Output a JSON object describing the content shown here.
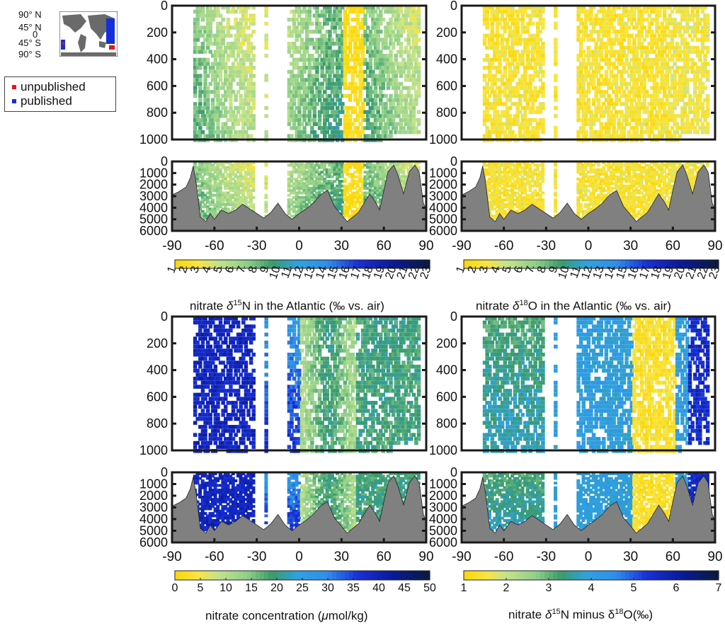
{
  "colors": {
    "land": "#808080",
    "axis": "#1a1a1a",
    "unpublished": "#e8141b",
    "published": "#1430d8"
  },
  "minimap": {
    "lat_labels": [
      "90° N",
      "45° N",
      "0",
      "45° S",
      "90° S"
    ]
  },
  "legend": {
    "items": [
      {
        "label": "unpublished",
        "color": "#e8141b"
      },
      {
        "label": "published",
        "color": "#1430d8"
      }
    ]
  },
  "chart_data": [
    {
      "type": "heatmap",
      "panel": "top-left",
      "x_tick_labels": [
        "-90",
        "-60",
        "-30",
        "0",
        "30",
        "60",
        "90"
      ],
      "xlim": [
        -90,
        90
      ],
      "upper_depth_ticks": [
        "0",
        "200",
        "400",
        "600",
        "800",
        "1000"
      ],
      "upper_ylim": [
        0,
        1000
      ],
      "lower_depth_ticks": [
        "0",
        "1000",
        "2000",
        "3000",
        "4000",
        "5000",
        "6000"
      ],
      "lower_ylim": [
        0,
        6000
      ],
      "colorbar": {
        "label_prefix": "nitrate ",
        "label_math": "δ",
        "label_sup": "15",
        "label_rest": "N in the Atlantic (‰ vs. air)",
        "ticks": [
          "1",
          "2",
          "3",
          "4",
          "5",
          "6",
          "7",
          "8",
          "9",
          "10",
          "11",
          "12",
          "13",
          "14",
          "15",
          "16",
          "17",
          "18",
          "19",
          "20",
          "21",
          "22",
          "23"
        ],
        "range": [
          1,
          23
        ]
      }
    },
    {
      "type": "heatmap",
      "panel": "top-right",
      "x_tick_labels": [
        "-90",
        "-60",
        "-30",
        "0",
        "30",
        "60",
        "90"
      ],
      "xlim": [
        -90,
        90
      ],
      "upper_depth_ticks": [
        "0",
        "200",
        "400",
        "600",
        "800",
        "1000"
      ],
      "upper_ylim": [
        0,
        1000
      ],
      "lower_depth_ticks": [
        "0",
        "1000",
        "2000",
        "3000",
        "4000",
        "5000",
        "6000"
      ],
      "lower_ylim": [
        0,
        6000
      ],
      "colorbar": {
        "label_prefix": "nitrate ",
        "label_math": "δ",
        "label_sup": "18",
        "label_rest": "O in the Atlantic (‰ vs. air)",
        "ticks": [
          "1",
          "2",
          "3",
          "4",
          "5",
          "6",
          "7",
          "8",
          "9",
          "10",
          "11",
          "12",
          "13",
          "14",
          "15",
          "16",
          "17",
          "18",
          "19",
          "20",
          "21",
          "22",
          "23"
        ],
        "range": [
          1,
          23
        ]
      }
    },
    {
      "type": "heatmap",
      "panel": "bottom-left",
      "x_tick_labels": [
        "-90",
        "-60",
        "-30",
        "0",
        "30",
        "60",
        "90"
      ],
      "xlim": [
        -90,
        90
      ],
      "upper_depth_ticks": [
        "0",
        "200",
        "400",
        "600",
        "800",
        "1000"
      ],
      "upper_ylim": [
        0,
        1000
      ],
      "lower_depth_ticks": [
        "0",
        "1000",
        "2000",
        "3000",
        "4000",
        "5000",
        "6000"
      ],
      "lower_ylim": [
        0,
        6000
      ],
      "colorbar": {
        "label_prefix": "nitrate concentration (",
        "label_math": "μ",
        "label_sup": "",
        "label_rest": "mol/kg)",
        "ticks": [
          "0",
          "5",
          "10",
          "15",
          "20",
          "25",
          "30",
          "35",
          "40",
          "45",
          "50"
        ],
        "range": [
          0,
          50
        ]
      }
    },
    {
      "type": "heatmap",
      "panel": "bottom-right",
      "x_tick_labels": [
        "-90",
        "-60",
        "-30",
        "0",
        "30",
        "60",
        "90"
      ],
      "xlim": [
        -90,
        90
      ],
      "upper_depth_ticks": [
        "0",
        "200",
        "400",
        "600",
        "800",
        "1000"
      ],
      "upper_ylim": [
        0,
        1000
      ],
      "lower_depth_ticks": [
        "0",
        "1000",
        "2000",
        "3000",
        "4000",
        "5000",
        "6000"
      ],
      "lower_ylim": [
        0,
        6000
      ],
      "colorbar": {
        "label_prefix": "nitrate ",
        "label_math": "δ",
        "label_sup": "15",
        "label_rest": "N minus δ",
        "label_sup2": "18",
        "label_rest2": "O(‰)",
        "ticks": [
          "1",
          "2",
          "3",
          "4",
          "5",
          "6",
          "7"
        ],
        "range": [
          1,
          7
        ]
      }
    }
  ]
}
